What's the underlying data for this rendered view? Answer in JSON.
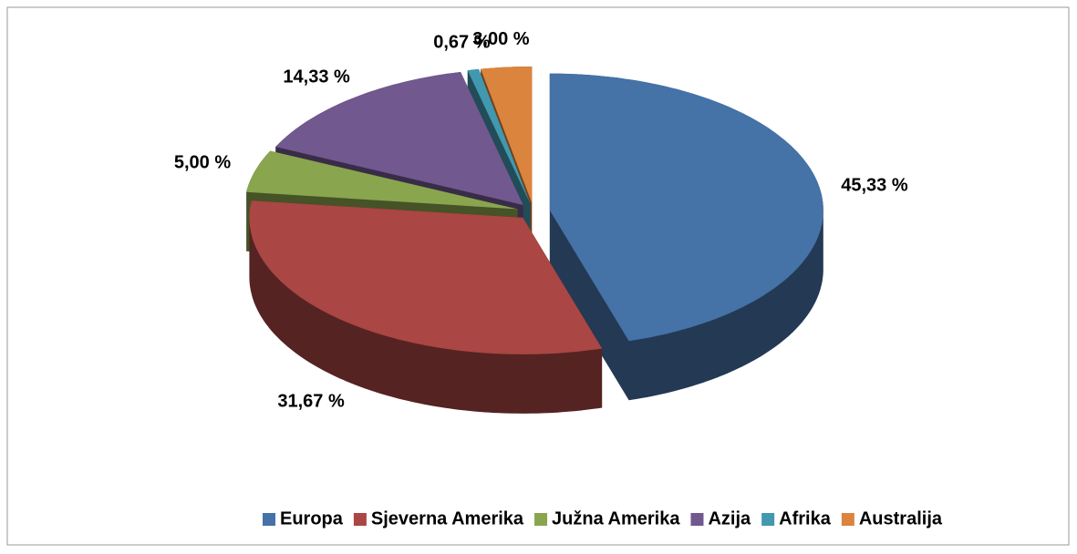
{
  "chart_data": {
    "type": "pie",
    "categories": [
      "Europa",
      "Sjeverna Amerika",
      "Južna Amerika",
      "Azija",
      "Afrika",
      "Australija"
    ],
    "values": [
      45.33,
      31.67,
      5.0,
      14.33,
      0.67,
      3.0
    ],
    "value_labels": [
      "45,33 %",
      "31,67 %",
      "5,00 %",
      "14,33 %",
      "0,67 %",
      "3,00 %"
    ],
    "colors": [
      "#4572a7",
      "#aa4643",
      "#89a54e",
      "#71588f",
      "#4198af",
      "#db843d"
    ],
    "legend": "bottom"
  }
}
